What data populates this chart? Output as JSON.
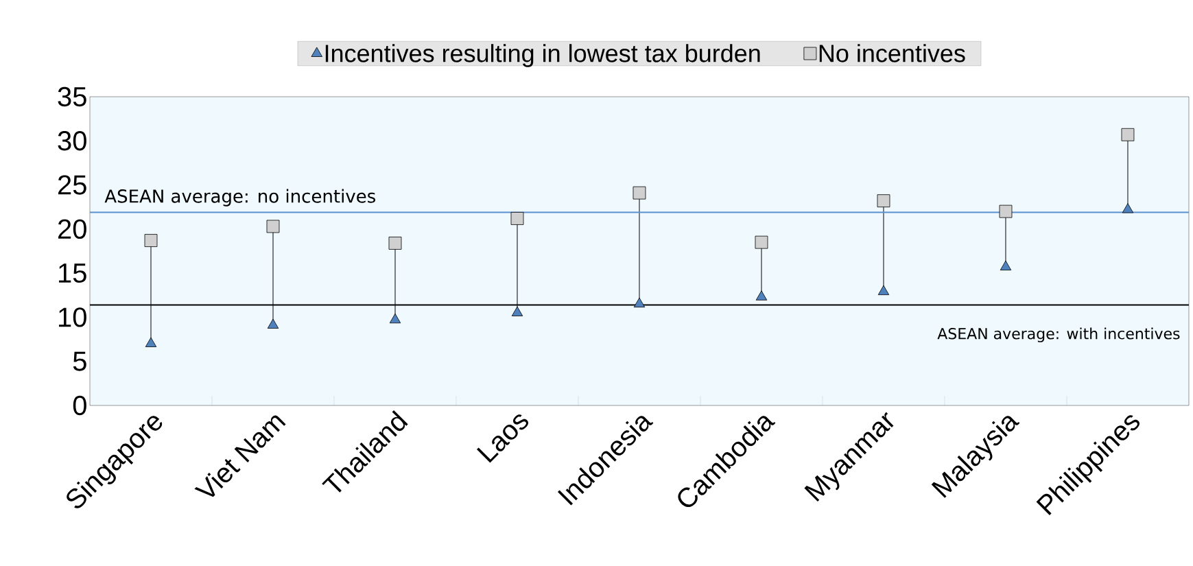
{
  "chart_data": {
    "type": "scatter",
    "categories": [
      "Singapore",
      "Viet Nam",
      "Thailand",
      "Laos",
      "Indonesia",
      "Cambodia",
      "Myanmar",
      "Malaysia",
      "Philippines"
    ],
    "series": [
      {
        "name": "Incentives resulting in lowest tax burden",
        "color": "#4f81bd",
        "marker": "triangle",
        "values": [
          7.0,
          9.1,
          9.7,
          10.5,
          11.5,
          12.3,
          12.9,
          15.7,
          22.2
        ]
      },
      {
        "name": "No incentives",
        "color": "#d0d0d0",
        "marker": "square",
        "values": [
          18.7,
          20.3,
          18.4,
          21.2,
          24.1,
          18.5,
          23.2,
          22.0,
          30.7
        ]
      }
    ],
    "ylim": [
      0,
      35
    ],
    "yticks": [
      0,
      5,
      10,
      15,
      20,
      25,
      30,
      35
    ],
    "ref_lines": [
      {
        "axis": "y",
        "value": 21.9,
        "label": "ASEAN average: no incentives",
        "color": "#5b8fd0"
      },
      {
        "axis": "y",
        "value": 11.4,
        "label": "ASEAN average: with incentives",
        "color": "#000000"
      }
    ],
    "legend": "top",
    "grid": false
  }
}
